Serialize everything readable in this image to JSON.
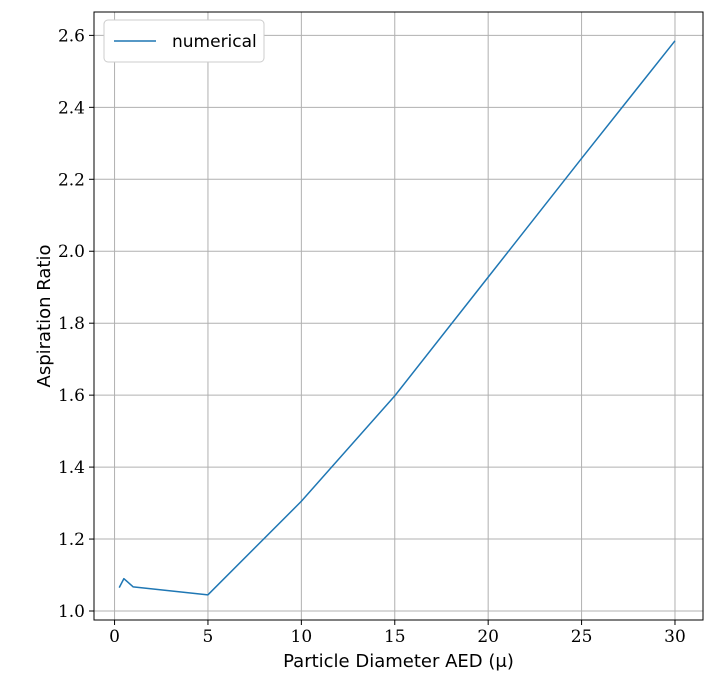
{
  "chart_data": {
    "type": "line",
    "xlabel": "Particle Diameter AED (μ)",
    "ylabel": "Aspiration Ratio",
    "xlim": [
      -1.1,
      31.5
    ],
    "ylim": [
      0.975,
      2.665
    ],
    "xticks": [
      "0",
      "5",
      "10",
      "15",
      "20",
      "25",
      "30"
    ],
    "yticks": [
      "1.0",
      "1.2",
      "1.4",
      "1.6",
      "1.8",
      "2.0",
      "2.2",
      "2.4",
      "2.6"
    ],
    "grid": true,
    "legend_position": "top-left",
    "series": [
      {
        "name": "numerical",
        "color": "#1f77b4",
        "x": [
          0.25,
          0.5,
          1,
          5,
          10,
          15,
          20,
          25,
          30
        ],
        "y": [
          1.065,
          1.09,
          1.067,
          1.045,
          1.305,
          1.598,
          1.928,
          2.258,
          2.585
        ]
      }
    ]
  }
}
